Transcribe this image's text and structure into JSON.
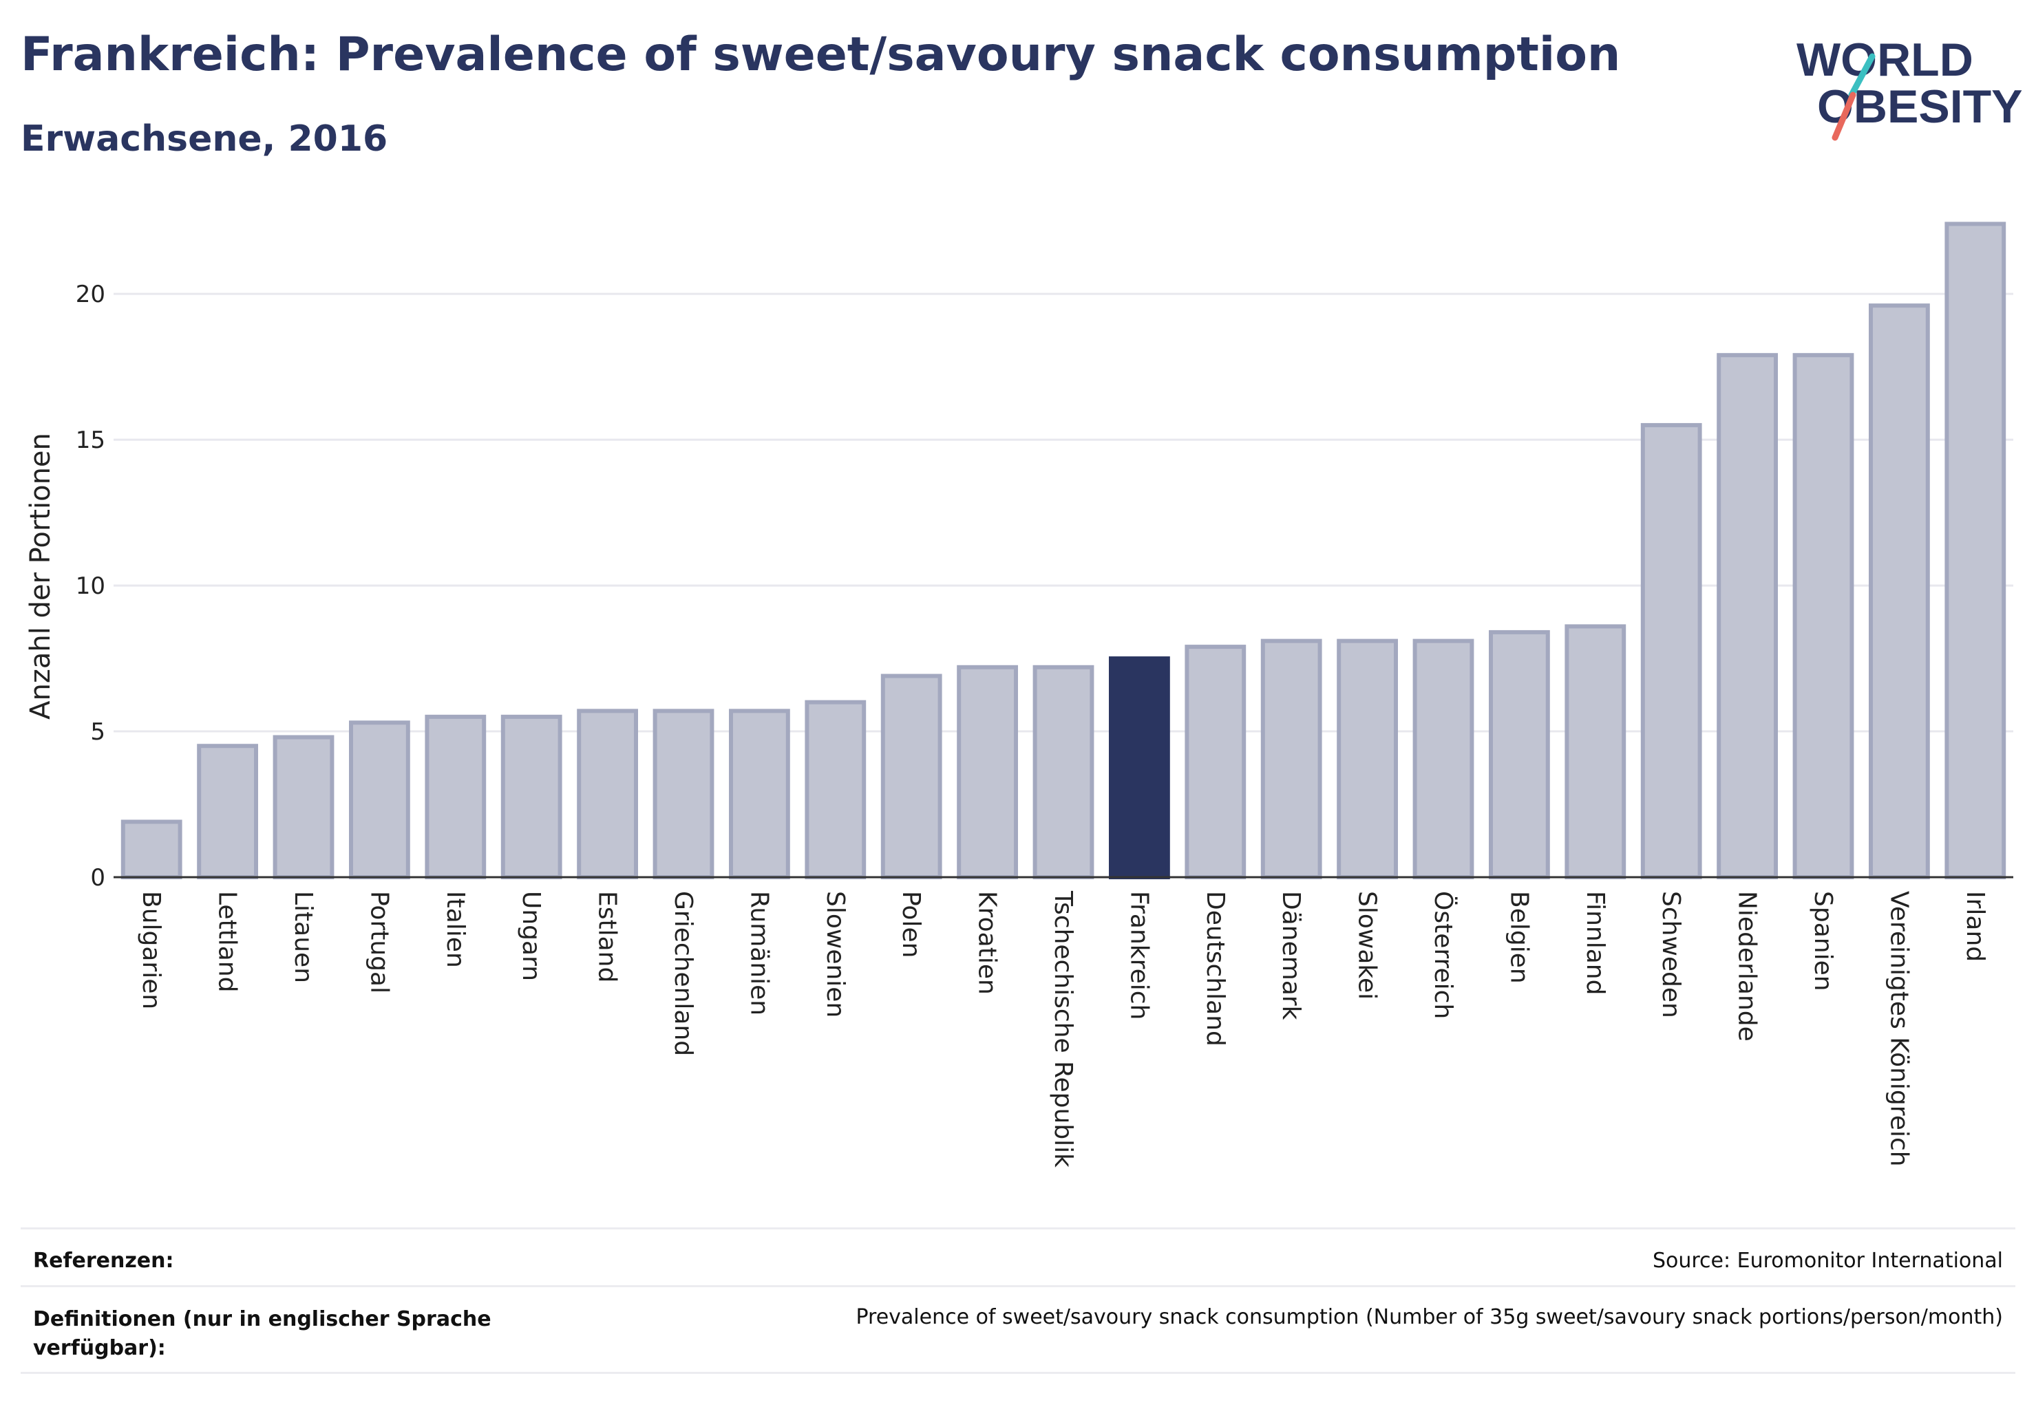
{
  "header": {
    "title": "Frankreich: Prevalence of sweet/savoury snack consumption",
    "subtitle": "Erwachsene, 2016"
  },
  "logo": {
    "line1": "WORLD",
    "line2": "OBESITY",
    "colors": {
      "text": "#2a3560",
      "slash_teal": "#3bbfc1",
      "slash_coral": "#e8685c"
    }
  },
  "colors": {
    "bar_fill": "#c1c4d2",
    "bar_stroke": "#a3a8bf",
    "highlight": "#2a3560",
    "grid": "#e8e8ee",
    "axis": "#333333"
  },
  "chart_data": {
    "type": "bar",
    "title": "Frankreich: Prevalence of sweet/savoury snack consumption",
    "subtitle": "Erwachsene, 2016",
    "ylabel": "Anzahl der Portionen",
    "xlabel": "",
    "ylim": [
      0,
      23
    ],
    "yticks": [
      0,
      5,
      10,
      15,
      20
    ],
    "grid": true,
    "highlight_category": "Frankreich",
    "categories": [
      "Bulgarien",
      "Lettland",
      "Litauen",
      "Portugal",
      "Italien",
      "Ungarn",
      "Estland",
      "Griechenland",
      "Rumänien",
      "Slowenien",
      "Polen",
      "Kroatien",
      "Tschechische Republik",
      "Frankreich",
      "Deutschland",
      "Dänemark",
      "Slowakei",
      "Österreich",
      "Belgien",
      "Finnland",
      "Schweden",
      "Niederlande",
      "Spanien",
      "Vereinigtes Königreich",
      "Irland"
    ],
    "values": [
      1.9,
      4.5,
      4.8,
      5.3,
      5.5,
      5.5,
      5.7,
      5.7,
      5.7,
      6.0,
      6.9,
      7.2,
      7.2,
      7.5,
      7.9,
      8.1,
      8.1,
      8.1,
      8.4,
      8.6,
      15.5,
      17.9,
      17.9,
      19.6,
      22.4
    ]
  },
  "footer": {
    "references_label": "Referenzen:",
    "references_value": "Source: Euromonitor International",
    "definitions_label": "Definitionen (nur in englischer Sprache verfügbar):",
    "definitions_value": "Prevalence of sweet/savoury snack consumption (Number of 35g sweet/savoury snack portions/person/month)"
  }
}
